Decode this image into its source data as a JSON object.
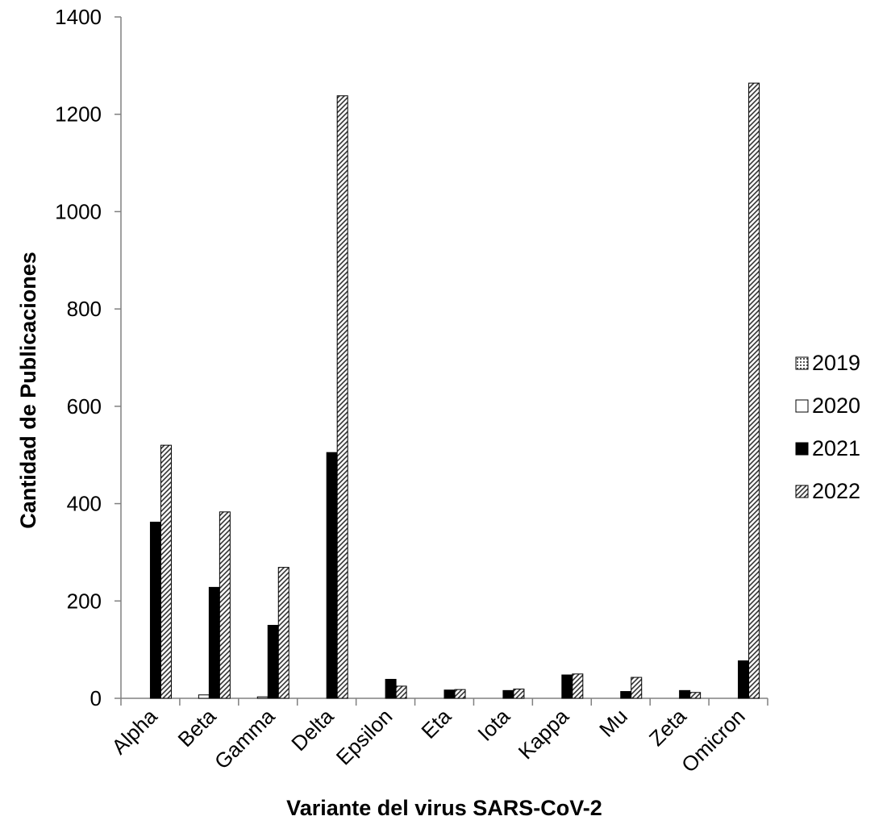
{
  "chart_data": {
    "type": "bar",
    "title": "",
    "xlabel": "Variante del virus SARS-CoV-2",
    "ylabel": "Cantidad de Publicaciones",
    "ylim": [
      0,
      1400
    ],
    "yticks": [
      0,
      200,
      400,
      600,
      800,
      1000,
      1200,
      1400
    ],
    "grid": false,
    "legend_position": "right",
    "categories": [
      "Alpha",
      "Beta",
      "Gamma",
      "Delta",
      "Epsilon",
      "Eta",
      "Iota",
      "Kappa",
      "Mu",
      "Zeta",
      "Omicron"
    ],
    "series": [
      {
        "name": "2019",
        "pattern": "dots",
        "color": "#ffffff",
        "values": [
          0,
          0,
          0,
          0,
          0,
          0,
          0,
          0,
          0,
          0,
          0
        ]
      },
      {
        "name": "2020",
        "pattern": "solid-white",
        "color": "#ffffff",
        "values": [
          0,
          7,
          3,
          0,
          0,
          0,
          0,
          0,
          0,
          0,
          0
        ]
      },
      {
        "name": "2021",
        "pattern": "solid-black",
        "color": "#000000",
        "values": [
          362,
          228,
          150,
          505,
          39,
          17,
          16,
          48,
          14,
          16,
          77
        ]
      },
      {
        "name": "2022",
        "pattern": "diagonal",
        "color": "#ffffff",
        "values": [
          520,
          383,
          269,
          1238,
          25,
          18,
          19,
          50,
          43,
          12,
          1264
        ]
      }
    ]
  }
}
